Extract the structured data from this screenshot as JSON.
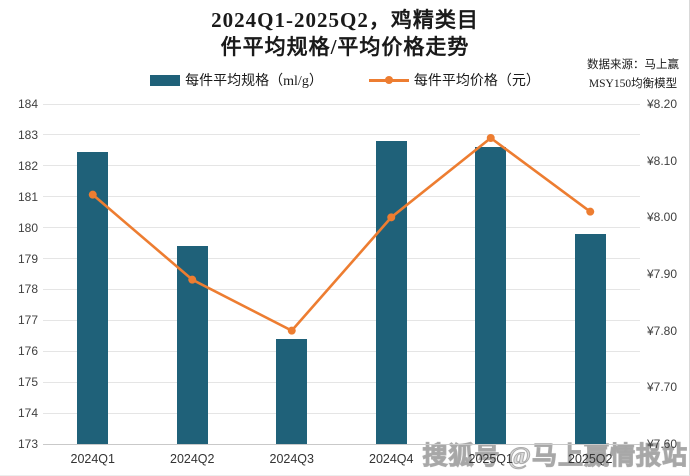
{
  "header": {
    "title_line1": "2024Q1-2025Q2，鸡精类目",
    "title_line2": "件平均规格/平均价格走势",
    "source_line1": "数据来源：马上赢",
    "source_line2": "MSY150均衡模型"
  },
  "watermark": "搜狐号 @马上赢情报站",
  "colors": {
    "bar": "#1f6179",
    "line": "#ed7d31",
    "grid": "#e5e5e5",
    "axis": "#c9c9c9"
  },
  "chart_data": {
    "type": "bar",
    "subtype": "combo bar+line, dual axis",
    "title": "2024Q1-2025Q2，鸡精类目 件平均规格/平均价格走势",
    "categories": [
      "2024Q1",
      "2024Q2",
      "2024Q3",
      "2024Q4",
      "2025Q1",
      "2025Q2"
    ],
    "series": [
      {
        "name": "每件平均规格（ml/g）",
        "type": "bar",
        "axis": "left",
        "color": "#1f6179",
        "values": [
          182.45,
          179.4,
          176.4,
          182.8,
          182.6,
          179.8
        ]
      },
      {
        "name": "每件平均价格（元）",
        "type": "line",
        "axis": "right",
        "color": "#ed7d31",
        "values": [
          8.04,
          7.89,
          7.8,
          8.0,
          8.14,
          8.01
        ]
      }
    ],
    "left_axis": {
      "min": 173,
      "max": 184,
      "step": 1,
      "ticks": [
        184,
        183,
        182,
        181,
        180,
        179,
        178,
        177,
        176,
        175,
        174,
        173
      ]
    },
    "right_axis": {
      "min": 7.6,
      "max": 8.2,
      "step": 0.1,
      "prefix": "¥",
      "ticks": [
        "¥8.20",
        "¥8.10",
        "¥8.00",
        "¥7.90",
        "¥7.80",
        "¥7.70",
        "¥7.60"
      ]
    },
    "grid": true,
    "legend_position": "top"
  }
}
